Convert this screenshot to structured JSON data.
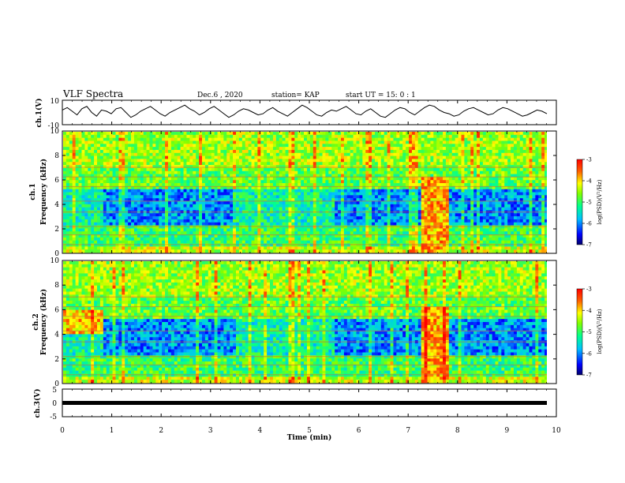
{
  "header": {
    "title": "VLF Spectra",
    "date": "Dec.6 , 2020",
    "station": "station= KAP",
    "start_time": "start UT = 15: 0 : 1"
  },
  "chart_data": [
    {
      "type": "line",
      "panel": "ch1-waveform",
      "ylabel": "ch.1(V)",
      "ylim": [
        -10,
        10
      ],
      "yticks": [
        "10",
        "-10"
      ],
      "xlim": [
        0,
        10
      ],
      "note_values": "oscillating waveform, approx -5..+5 V around ~1 V",
      "series": [
        {
          "values": [
            2,
            4,
            1,
            -2,
            3,
            5,
            0,
            -3,
            2,
            1,
            -1,
            3,
            4,
            0,
            -4,
            -2,
            1,
            3,
            5,
            2,
            -1,
            -3,
            0,
            2,
            4,
            6,
            3,
            1,
            -2,
            0,
            3,
            5,
            2,
            -1,
            -4,
            -2,
            1,
            3,
            2,
            0,
            -2,
            -1,
            2,
            4,
            1,
            -1,
            -3,
            0,
            3,
            6,
            4,
            1,
            -2,
            -3,
            0,
            2,
            1,
            3,
            5,
            2,
            -1,
            -2,
            1,
            3,
            0,
            -3,
            -4,
            -1,
            2,
            4,
            3,
            0,
            -2,
            1,
            4,
            6,
            5,
            2,
            0,
            -1,
            -3,
            -2,
            1,
            3,
            4,
            2,
            0,
            -2,
            -1,
            2,
            4,
            3,
            1,
            -1,
            -3,
            -2,
            0,
            2,
            1,
            -1
          ]
        }
      ]
    },
    {
      "type": "heatmap",
      "panel": "ch1-spectrogram",
      "ylabel": "ch.1 Frequency (kHz)",
      "ylim": [
        0,
        10
      ],
      "yticks": [
        "0",
        "2",
        "4",
        "6",
        "8",
        "10"
      ],
      "xlim": [
        0,
        10
      ],
      "colorbar": {
        "label": "log(PSD)(V²/Hz)",
        "range": [
          -7,
          -3
        ],
        "ticks": [
          "-3",
          "-4",
          "-5",
          "-6",
          "-7"
        ]
      }
    },
    {
      "type": "heatmap",
      "panel": "ch2-spectrogram",
      "ylabel": "ch.2 Frequency (kHz)",
      "ylim": [
        0,
        10
      ],
      "yticks": [
        "0",
        "2",
        "4",
        "6",
        "8",
        "10"
      ],
      "xlim": [
        0,
        10
      ],
      "colorbar": {
        "label": "log(PSD)(V²/Hz)",
        "range": [
          -7,
          -3
        ],
        "ticks": [
          "-3",
          "-4",
          "-5",
          "-6",
          "-7"
        ]
      }
    },
    {
      "type": "line",
      "panel": "ch3-waveform",
      "ylabel": "ch.3(V)",
      "ylim": [
        -5,
        5
      ],
      "yticks": [
        "5",
        "0",
        "-5"
      ],
      "xlim": [
        0,
        10
      ],
      "series": [
        {
          "values": [
            0.1,
            -0.1,
            0.1,
            -0.1
          ]
        }
      ]
    }
  ],
  "xaxis": {
    "label": "Time (min)",
    "ticks": [
      "0",
      "1",
      "2",
      "3",
      "4",
      "5",
      "6",
      "7",
      "8",
      "9",
      "10"
    ]
  },
  "colors": {
    "axis": "#000000",
    "trace": "#000000",
    "colormap": [
      "#00008f",
      "#0000ff",
      "#00bfff",
      "#00ffaa",
      "#7fff00",
      "#ffff00",
      "#ff8000",
      "#ff0000",
      "#8b0000"
    ]
  }
}
